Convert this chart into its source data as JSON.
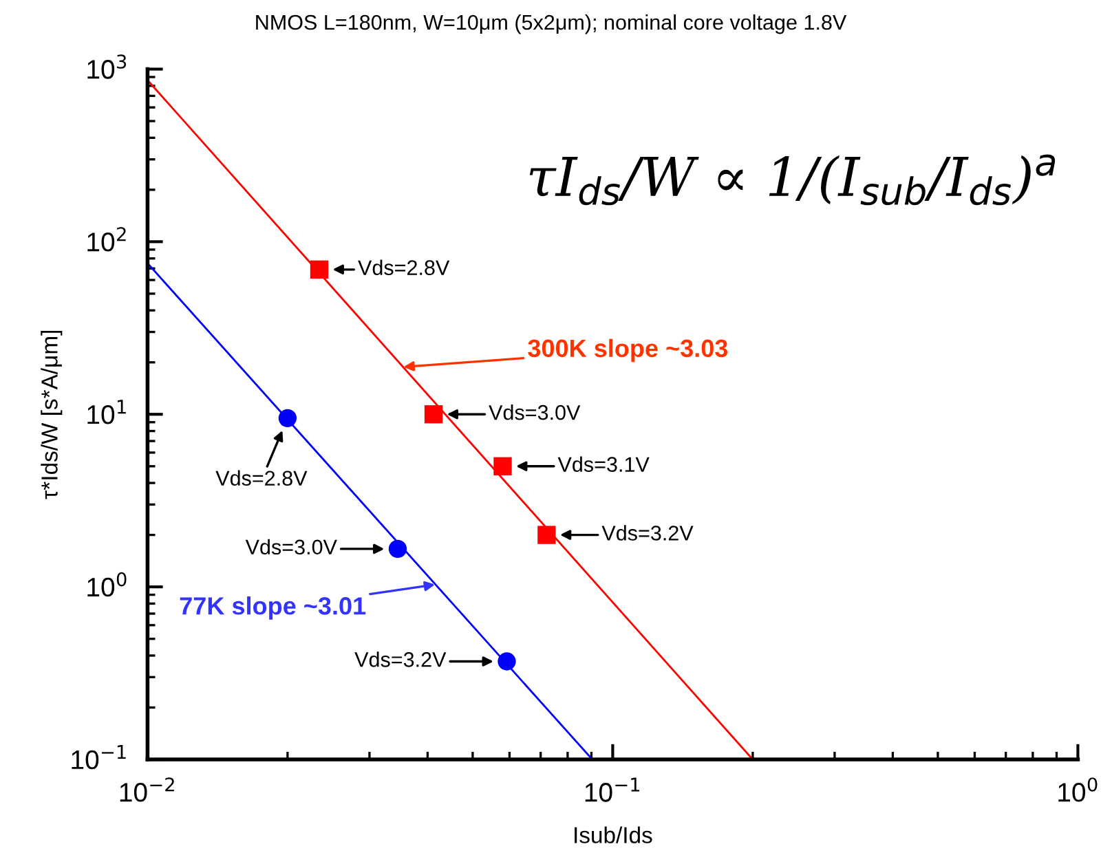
{
  "chart_data": {
    "type": "scatter",
    "title": "NMOS L=180nm, W=10μm (5x2μm); nominal core voltage 1.8V",
    "xlabel": "Isub/Ids",
    "ylabel": "τ*Ids/W [s*A/μm]",
    "log": "xy",
    "grid": false,
    "xlim": [
      0.01,
      1
    ],
    "ylim": [
      0.1,
      1000
    ],
    "xticks": [
      {
        "value": 0.01,
        "label": "10$^{−2}$"
      },
      {
        "value": 0.1,
        "label": "10$^{−1}$"
      },
      {
        "value": 1,
        "label": "10$^{0}$"
      }
    ],
    "yticks": [
      {
        "value": 0.1,
        "label": "10$^{−1}$"
      },
      {
        "value": 1,
        "label": "10$^{0}$"
      },
      {
        "value": 10,
        "label": "10$^{1}$"
      },
      {
        "value": 100,
        "label": "10$^{2}$"
      },
      {
        "value": 1000,
        "label": "10$^{3}$"
      }
    ],
    "series": [
      {
        "type": "line",
        "color": "#ff0000",
        "x": [
          0.01,
          0.2
        ],
        "values": [
          863,
          0.1
        ],
        "marker": "none",
        "line_style": "solid"
      },
      {
        "type": "line",
        "color": "#0000ff",
        "x": [
          0.01,
          0.0904
        ],
        "values": [
          75,
          0.1
        ],
        "marker": "none",
        "line_style": "solid"
      },
      {
        "color": "#ff0000",
        "x": [
          0.0234,
          0.0412,
          0.058,
          0.0721
        ],
        "values": [
          69,
          10,
          5.0,
          2.0
        ],
        "marker": "square"
      },
      {
        "color": "#0000ff",
        "x": [
          0.02,
          0.0345,
          0.0592
        ],
        "values": [
          9.5,
          1.66,
          0.37
        ],
        "marker": "circle"
      }
    ],
    "annotations": [
      {
        "text": "Vds=2.8V",
        "x": 0.0234,
        "y": 69
      },
      {
        "text": "Vds=3.0V",
        "x": 0.0412,
        "y": 10
      },
      {
        "text": "Vds=3.1V",
        "x": 0.058,
        "y": 5.0
      },
      {
        "text": "Vds=3.2V",
        "x": 0.0721,
        "y": 2.0
      },
      {
        "text": "Vds=2.8V",
        "x": 0.02,
        "y": 9.5
      },
      {
        "text": "Vds=3.0V",
        "x": 0.0345,
        "y": 1.66
      },
      {
        "text": "Vds=3.2V",
        "x": 0.0592,
        "y": 0.37
      },
      {
        "text": "300K slope ~3.03",
        "x": 0.0355,
        "y": 18.8
      },
      {
        "text": "77K slope ~3.01",
        "x": 0.0415,
        "y": 1.03
      },
      "τI$_{ds}$/W ∝ 1/(I$_{sub}$/I$_{ds}$)$^{a}$"
    ]
  }
}
